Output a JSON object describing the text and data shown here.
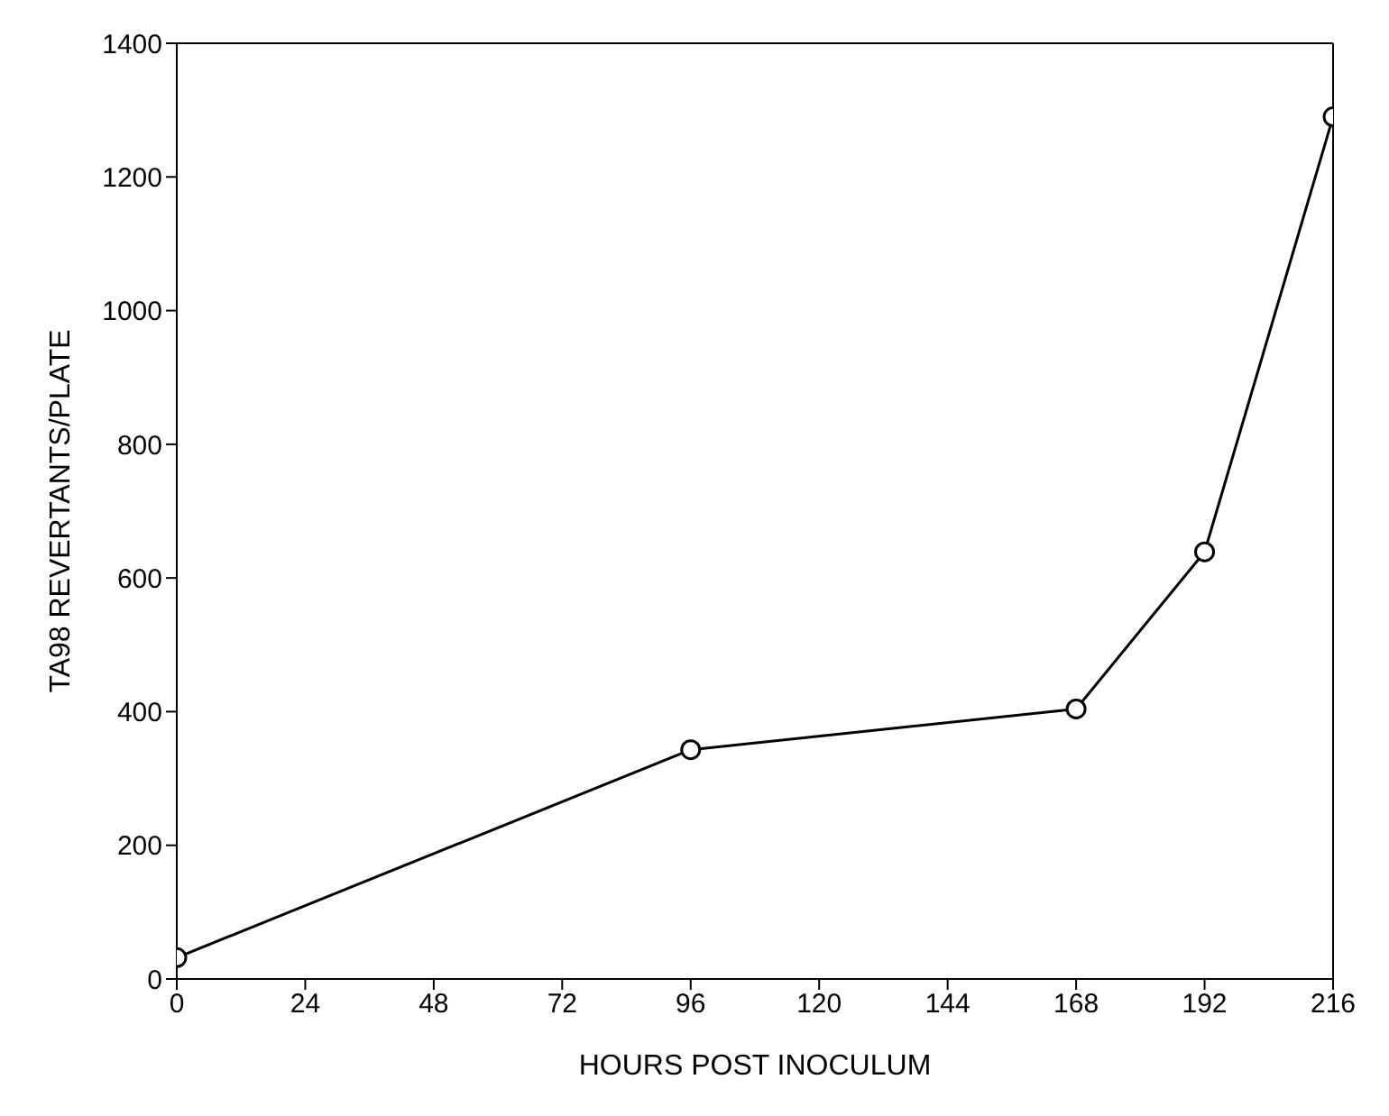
{
  "chart_data": {
    "type": "line",
    "xlabel": "HOURS POST INOCULUM",
    "ylabel": "TA98 REVERTANTS/PLATE",
    "x": [
      0,
      96,
      168,
      192,
      216
    ],
    "series": [
      {
        "color": "#000000",
        "values": [
          32,
          343,
          404,
          639,
          1290
        ]
      }
    ],
    "xlim": [
      0,
      216
    ],
    "xticks": [
      0,
      24,
      48,
      72,
      96,
      120,
      144,
      168,
      192,
      216
    ],
    "ylim": [
      0,
      1400
    ],
    "yticks": [
      0,
      200,
      400,
      600,
      800,
      1000,
      1200,
      1400
    ],
    "grid": false,
    "legend": false,
    "marker": "circle",
    "line_style": "solid"
  }
}
